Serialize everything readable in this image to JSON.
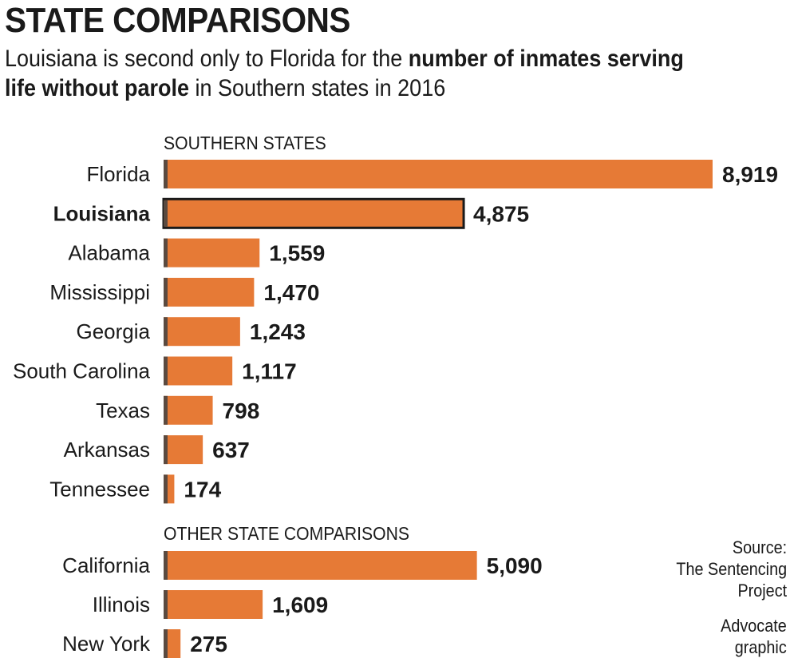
{
  "header": {
    "title": "STATE COMPARISONS",
    "subtitle_line1_pre": "Louisiana is second only to Florida for the ",
    "subtitle_line1_bold": "number of inmates serving",
    "subtitle_line2_bold": "life without parole",
    "subtitle_line2_post": " in Southern states in 2016"
  },
  "source": {
    "line1": "Source:",
    "line2": "The Sentencing",
    "line3": "Project"
  },
  "credit": {
    "line1": "Advocate",
    "line2": "graphic"
  },
  "colors": {
    "bar": "#e67a36",
    "bar_shadow": "#5a4a40",
    "highlight_outline": "#1a1a1a"
  },
  "chart_data": [
    {
      "type": "bar",
      "orientation": "horizontal",
      "title": "SOUTHERN STATES",
      "categories": [
        "Florida",
        "Louisiana",
        "Alabama",
        "Mississippi",
        "Georgia",
        "South Carolina",
        "Texas",
        "Arkansas",
        "Tennessee"
      ],
      "values": [
        8919,
        4875,
        1559,
        1470,
        1243,
        1117,
        798,
        637,
        174
      ],
      "value_labels": [
        "8,919",
        "4,875",
        "1,559",
        "1,470",
        "1,243",
        "1,117",
        "798",
        "637",
        "174"
      ],
      "highlight": "Louisiana",
      "xlim": [
        0,
        8919
      ]
    },
    {
      "type": "bar",
      "orientation": "horizontal",
      "title": "OTHER STATE COMPARISONS",
      "categories": [
        "California",
        "Illinois",
        "New York"
      ],
      "values": [
        5090,
        1609,
        275
      ],
      "value_labels": [
        "5,090",
        "1,609",
        "275"
      ],
      "xlim": [
        0,
        8919
      ]
    }
  ]
}
